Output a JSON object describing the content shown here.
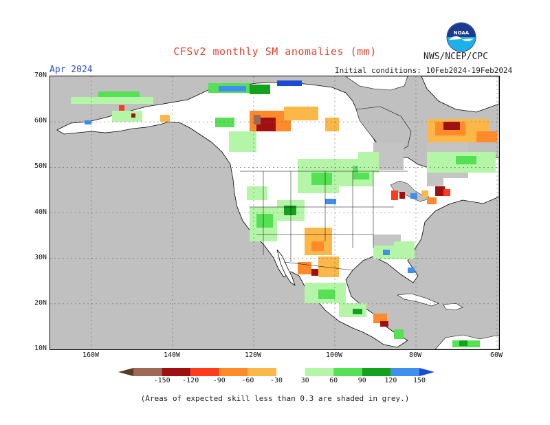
{
  "title": "CFSv2 monthly SM anomalies (mm)",
  "forecast_month": "Apr 2024",
  "agency": "NWS/NCEP/CPC",
  "initial_conditions": "Initial conditions: 10Feb2024-19Feb2024",
  "footnote": "(Areas of expected skill less than 0.3 are shaded in grey.)",
  "logo_text": "NOAA",
  "latitude_labels": [
    "70N",
    "60N",
    "50N",
    "40N",
    "30N",
    "20N",
    "10N"
  ],
  "longitude_labels": [
    "160W",
    "140W",
    "120W",
    "100W",
    "80W",
    "60W"
  ],
  "colorbar": {
    "ticks": [
      "-150",
      "-120",
      "-90",
      "-60",
      "-30",
      "30",
      "60",
      "90",
      "120",
      "150"
    ],
    "colors": [
      "#5c3a24",
      "#9e6a55",
      "#a01010",
      "#ff3c19",
      "#ff8a2a",
      "#fbb848",
      "#ffffff",
      "#b5f5a8",
      "#54e254",
      "#12a21c",
      "#3f8fef",
      "#1a4bd6"
    ]
  },
  "colors": {
    "ocean_grey": "#c0c0c0",
    "land_white": "#ffffff",
    "skill_grey": "#c4c4c4"
  }
}
